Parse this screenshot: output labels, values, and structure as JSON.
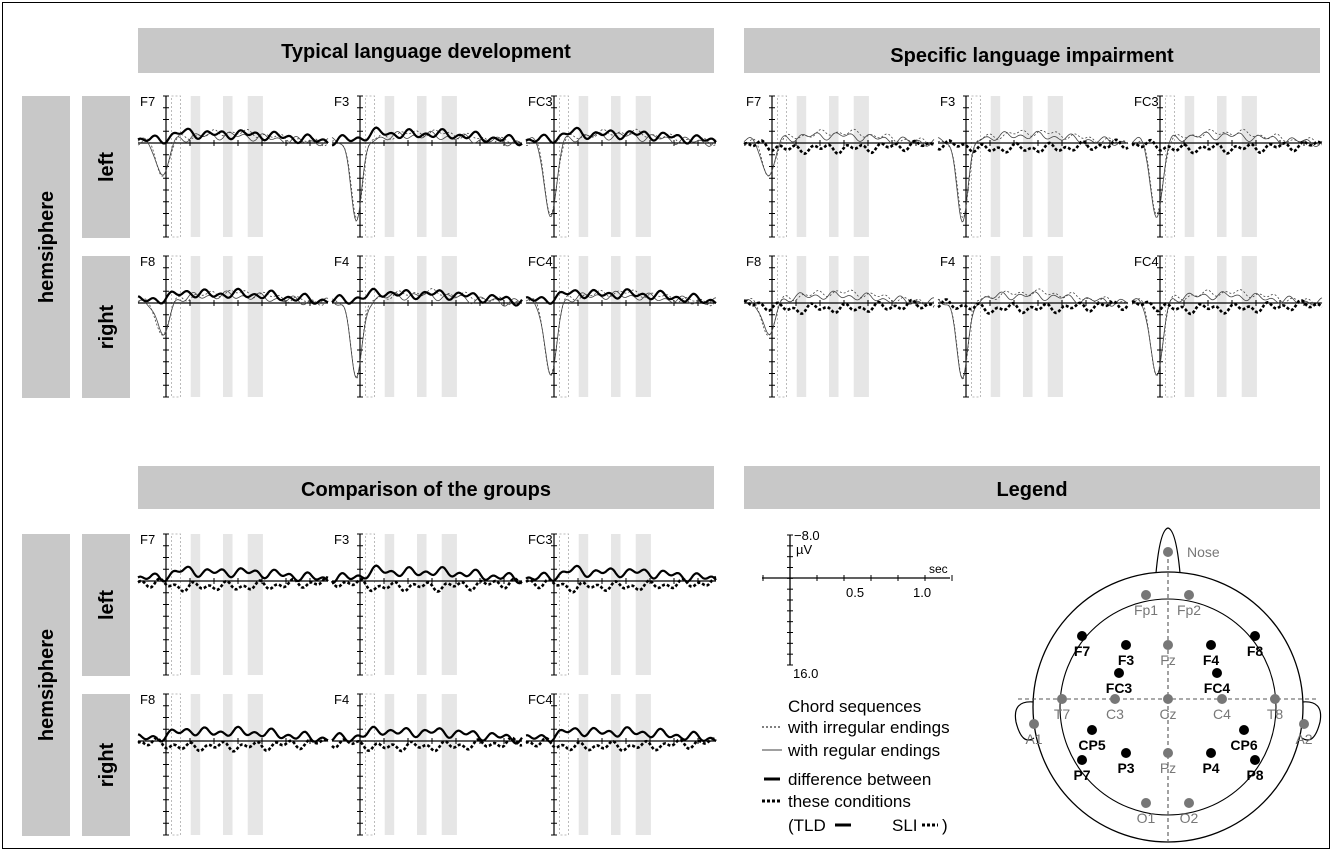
{
  "panels": {
    "tld": {
      "title": "Typical language development"
    },
    "sli": {
      "title": "Specific language impairment"
    },
    "cmp": {
      "title": "Comparison of the groups"
    },
    "legend": {
      "title": "Legend"
    }
  },
  "side_labels": {
    "hemisphere_top": "hemsiphere",
    "hemisphere_bottom": "hemsiphere",
    "left": "left",
    "right": "right"
  },
  "electrodes": {
    "left_row": [
      "F7",
      "F3",
      "FC3"
    ],
    "right_row": [
      "F8",
      "F4",
      "FC4"
    ]
  },
  "axis_key": {
    "y_top": "−8.0",
    "y_unit": "µV",
    "y_bottom": "16.0",
    "x_unit": "sec",
    "x_tick_1": "0.5",
    "x_tick_2": "1.0"
  },
  "legend_text": {
    "heading": "Chord sequences",
    "irregular": "with irregular endings",
    "regular": "with regular endings",
    "difference": "difference between",
    "conditions": "these conditions",
    "groups_open": "(TLD",
    "groups_sli": "SLI",
    "groups_close": ")"
  },
  "head_map": {
    "nose": "Nose",
    "black_sites": [
      "F7",
      "F3",
      "F4",
      "F8",
      "FC3",
      "FC4",
      "CP5",
      "CP6",
      "P7",
      "P3",
      "P4",
      "P8"
    ],
    "gray_sites": [
      "Fp1",
      "Fp2",
      "Fz",
      "T7",
      "C3",
      "Cz",
      "C4",
      "T8",
      "A1",
      "A2",
      "Pz",
      "O1",
      "O2"
    ]
  },
  "colors": {
    "header_bg": "#c8c8c8",
    "window_shade": "#e6e6e6",
    "gray_electrode": "#777777",
    "black_electrode": "#000000"
  }
}
